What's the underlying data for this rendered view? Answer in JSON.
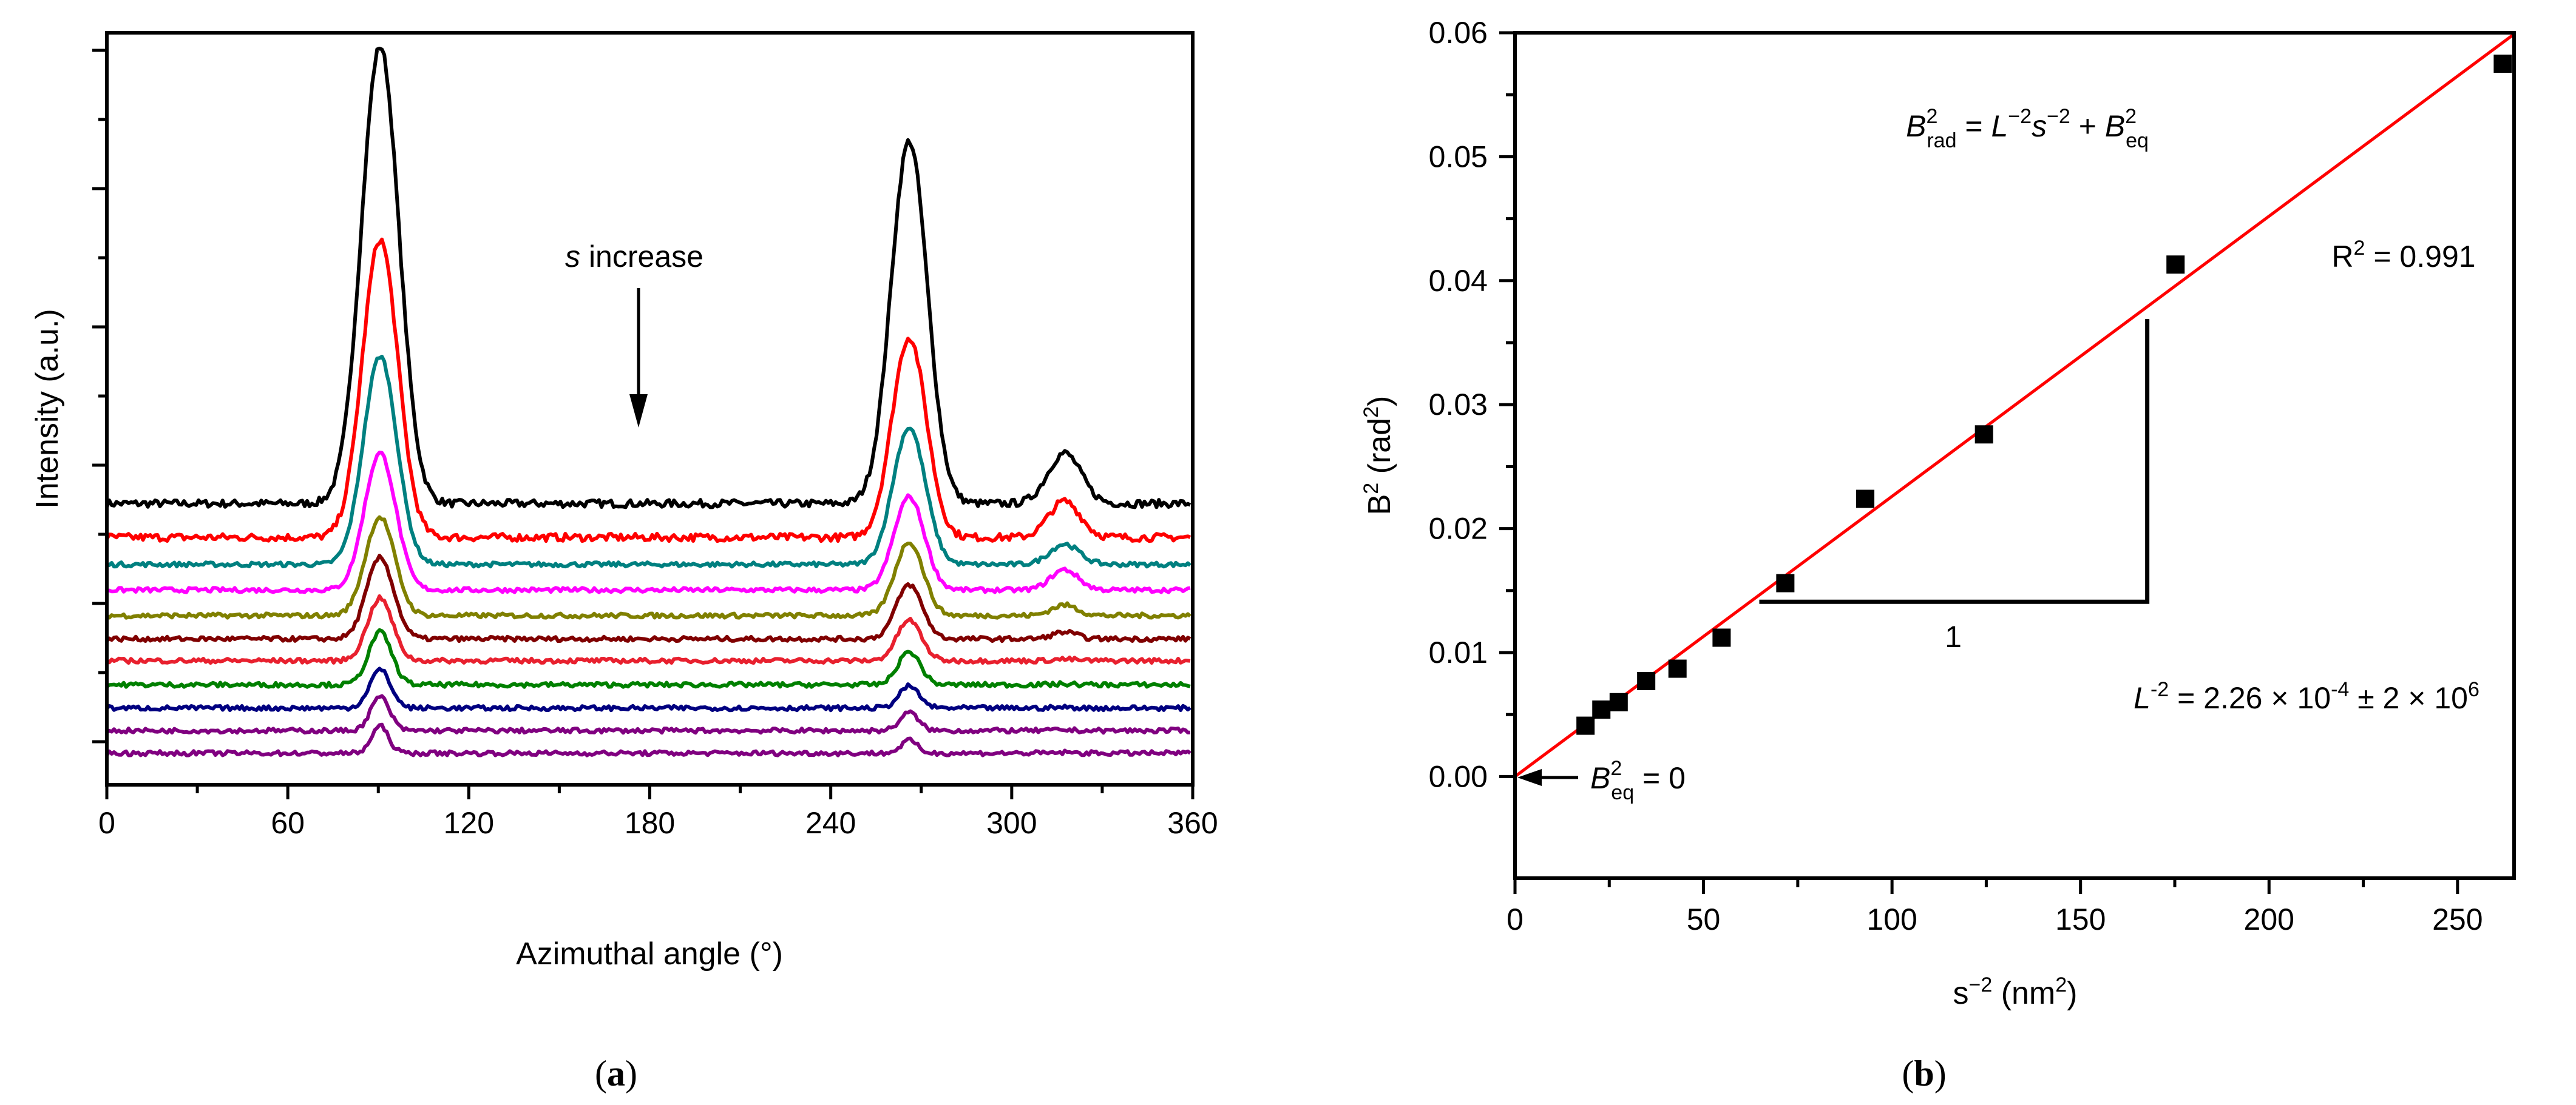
{
  "chart_data": [
    {
      "type": "line",
      "panel_label": "a",
      "caption": "(a)",
      "xlabel": "Azimuthal angle (°)",
      "ylabel": "Intensity (a.u.)",
      "xlim": [
        0,
        360
      ],
      "ylim": [
        0,
        100
      ],
      "xticks": [
        0,
        60,
        120,
        180,
        240,
        300,
        360
      ],
      "yticklabels_shown": false,
      "annotation": {
        "italic": "s",
        "text": " increase",
        "arrow": "down"
      },
      "peak_positions": [
        90.6,
        266,
        317.5
      ],
      "series": [
        {
          "name": "curve-1",
          "color": "#000000",
          "baseline": 37.4,
          "peaks": [
            98.2,
            85.6,
            44.1
          ]
        },
        {
          "name": "curve-2",
          "color": "#ff0000",
          "baseline": 32.9,
          "peaks": [
            72.5,
            59.5,
            37.7
          ]
        },
        {
          "name": "curve-3",
          "color": "#008080",
          "baseline": 29.3,
          "peaks": [
            57.0,
            47.5,
            32.0
          ]
        },
        {
          "name": "curve-4",
          "color": "#ff00ff",
          "baseline": 25.9,
          "peaks": [
            44.1,
            38.3,
            28.6
          ]
        },
        {
          "name": "curve-5",
          "color": "#808000",
          "baseline": 22.5,
          "peaks": [
            35.6,
            32.3,
            23.9
          ]
        },
        {
          "name": "curve-6",
          "color": "#800000",
          "baseline": 19.4,
          "peaks": [
            30.2,
            26.6,
            20.3
          ]
        },
        {
          "name": "curve-7",
          "color": "#e8202e",
          "baseline": 16.5,
          "peaks": [
            24.8,
            21.9,
            16.7
          ]
        },
        {
          "name": "curve-8",
          "color": "#008000",
          "baseline": 13.3,
          "peaks": [
            20.3,
            17.7,
            13.4
          ]
        },
        {
          "name": "curve-9",
          "color": "#000080",
          "baseline": 10.2,
          "peaks": [
            15.3,
            13.1,
            10.3
          ]
        },
        {
          "name": "curve-10",
          "color": "#800080",
          "baseline": 7.2,
          "peaks": [
            11.7,
            9.6,
            7.3
          ]
        },
        {
          "name": "curve-11",
          "color": "#800080",
          "baseline": 4.2,
          "peaks": [
            7.8,
            5.9,
            4.3
          ]
        }
      ]
    },
    {
      "type": "scatter",
      "panel_label": "b",
      "caption": "(b)",
      "xlabel": {
        "base": "s",
        "sup": "−2",
        "unit": " (nm",
        "unit_sup": "2",
        "close": ")"
      },
      "ylabel": {
        "base": "B",
        "sup": "2",
        "unit": " (rad",
        "unit_sup": "2",
        "close": ")"
      },
      "xlim": [
        0,
        265
      ],
      "ylim": [
        -0.0082,
        0.06
      ],
      "xticks": [
        0,
        50,
        100,
        150,
        200,
        250
      ],
      "yticks": [
        "0.00",
        "0.01",
        "0.02",
        "0.03",
        "0.04",
        "0.05",
        "0.06"
      ],
      "points": [
        [
          18.7,
          0.0041
        ],
        [
          22.9,
          0.0054
        ],
        [
          27.5,
          0.006
        ],
        [
          34.8,
          0.0077
        ],
        [
          43.1,
          0.0087
        ],
        [
          54.8,
          0.0112
        ],
        [
          71.7,
          0.0156
        ],
        [
          92.9,
          0.0224
        ],
        [
          124.4,
          0.0276
        ],
        [
          175.2,
          0.0413
        ],
        [
          262,
          0.0575
        ]
      ],
      "fit": {
        "color": "#ff0000",
        "slope": 0.000226,
        "intercept": 0,
        "r2_text": "R",
        "r2_sup": "2",
        "r2_value": " = 0.991"
      },
      "slope_triangle": {
        "x_start": 64.8,
        "x_end": 167.7,
        "y_bottom": 0.0141,
        "y_top": 0.0369,
        "label": "1"
      },
      "equation": {
        "B": "B",
        "sup1": "2",
        "sub1": "rad",
        "eq": " = ",
        "L": "L",
        "sup2": "−2",
        "s": "s",
        "sup3": "−2",
        "plus": " + ",
        "B2": "B",
        "sup4": "2",
        "sub2": "eq"
      },
      "slope_text": {
        "L": "L",
        "sup": "-2",
        "rest": " = 2.26 × 10",
        "exp1": "-4",
        "pm": " ± 2 × 10",
        "exp2": "6"
      },
      "intercept_text": {
        "B": "B",
        "sup": "2",
        "sub": "eq",
        "rest": " = 0"
      }
    }
  ]
}
